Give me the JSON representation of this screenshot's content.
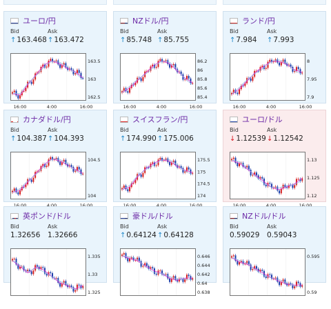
{
  "colors": {
    "positive_bg": "#e9f4fc",
    "negative_bg": "#fbeced",
    "title": "#6d2aa6",
    "up": "#1b86c8",
    "down": "#d8141c",
    "up_candle": "#d62020",
    "down_candle": "#1d3ea8",
    "ma1": "#d535d5",
    "ma2": "#8fb7e6"
  },
  "icons": {
    "up": "↑",
    "down": "↓"
  },
  "labels": {
    "bid": "Bid",
    "ask": "Ask"
  },
  "cards": [
    {
      "pair": "ユーロ/円",
      "flag": "eu-flag",
      "dir": "up",
      "bid": "163.468",
      "ask": "163.472",
      "tone": "pos",
      "y_ticks": [
        "163.5",
        "163",
        "162.5"
      ],
      "x_ticks": [
        "16:00",
        "4:00",
        "16:00"
      ],
      "trend": [
        162.6,
        162.55,
        162.9,
        163.2,
        163.5,
        163.65,
        163.55,
        163.4,
        163.3,
        163.1
      ],
      "range": [
        162.4,
        163.8
      ]
    },
    {
      "pair": "NZドル/円",
      "flag": "nz-flag",
      "dir": "up",
      "bid": "85.748",
      "ask": "85.755",
      "tone": "pos",
      "y_ticks": [
        "86.2",
        "86",
        "85.8",
        "85.6",
        "85.4"
      ],
      "x_ticks": [
        "16:00",
        "4:00",
        "16:00"
      ],
      "trend": [
        85.5,
        85.6,
        85.75,
        85.9,
        86.05,
        86.15,
        86.1,
        85.95,
        85.8,
        85.7
      ],
      "range": [
        85.35,
        86.25
      ]
    },
    {
      "pair": "ランド/円",
      "flag": "za-flag",
      "dir": "up",
      "bid": "7.984",
      "ask": "7.993",
      "tone": "pos",
      "y_ticks": [
        "8",
        "7.95",
        "7.9"
      ],
      "x_ticks": [
        "16:00",
        "4:00",
        "16:00"
      ],
      "trend": [
        7.88,
        7.9,
        7.93,
        7.96,
        7.98,
        8.0,
        8.0,
        7.99,
        7.97,
        7.96
      ],
      "range": [
        7.86,
        8.02
      ]
    },
    {
      "pair": "カナダドル/円",
      "flag": "ca-flag",
      "dir": "up",
      "bid": "104.387",
      "ask": "104.393",
      "tone": "pos",
      "y_ticks": [
        "104.5",
        "104"
      ],
      "x_ticks": [
        "16:00",
        "4:00",
        "16:00"
      ],
      "trend": [
        103.95,
        104.0,
        104.2,
        104.4,
        104.6,
        104.75,
        104.7,
        104.6,
        104.5,
        104.4
      ],
      "range": [
        103.8,
        104.85
      ]
    },
    {
      "pair": "スイスフラン/円",
      "flag": "ch-flag",
      "dir": "up",
      "bid": "174.990",
      "ask": "175.006",
      "tone": "pos",
      "y_ticks": [
        "175.5",
        "175",
        "174.5",
        "174"
      ],
      "x_ticks": [
        "16:00",
        "4:00",
        "16:00"
      ],
      "trend": [
        174.3,
        174.4,
        174.8,
        175.1,
        175.3,
        175.45,
        175.4,
        175.2,
        175.05,
        174.95
      ],
      "range": [
        173.95,
        175.65
      ]
    },
    {
      "pair": "ユーロ/ドル",
      "flag": "eu-flag",
      "dir": "down",
      "bid": "1.12539",
      "ask": "1.12542",
      "tone": "neg",
      "y_ticks": [
        "1.13",
        "1.125",
        "1.12"
      ],
      "x_ticks": [
        "16:00",
        "4:00",
        "16:00"
      ],
      "trend": [
        1.131,
        1.13,
        1.128,
        1.126,
        1.124,
        1.122,
        1.121,
        1.122,
        1.123,
        1.125
      ],
      "range": [
        1.118,
        1.133
      ]
    },
    {
      "pair": "英ポンド/ドル",
      "flag": "uk-flag",
      "dir": "none",
      "bid": "1.32656",
      "ask": "1.32666",
      "tone": "pos",
      "y_ticks": [
        "1.335",
        "1.33",
        "1.325"
      ],
      "x_ticks": [],
      "trend": [
        1.334,
        1.332,
        1.33,
        1.332,
        1.331,
        1.329,
        1.327,
        1.326,
        1.325,
        1.326
      ],
      "range": [
        1.323,
        1.337
      ]
    },
    {
      "pair": "豪ドル/ドル",
      "flag": "au-flag",
      "dir": "up",
      "bid": "0.64124",
      "ask": "0.64128",
      "tone": "pos",
      "y_ticks": [
        "0.646",
        "0.644",
        "0.642",
        "0.64",
        "0.638"
      ],
      "x_ticks": [],
      "trend": [
        0.6455,
        0.645,
        0.6445,
        0.6435,
        0.6425,
        0.642,
        0.641,
        0.6405,
        0.641,
        0.641
      ],
      "range": [
        0.6375,
        0.6465
      ]
    },
    {
      "pair": "NZドル/ドル",
      "flag": "nz-flag",
      "dir": "none",
      "bid": "0.59029",
      "ask": "0.59043",
      "tone": "pos",
      "y_ticks": [
        "0.595",
        "0.59"
      ],
      "x_ticks": [],
      "trend": [
        0.5965,
        0.5955,
        0.595,
        0.594,
        0.593,
        0.592,
        0.5912,
        0.5905,
        0.5903,
        0.5903
      ],
      "range": [
        0.588,
        0.598
      ]
    }
  ]
}
